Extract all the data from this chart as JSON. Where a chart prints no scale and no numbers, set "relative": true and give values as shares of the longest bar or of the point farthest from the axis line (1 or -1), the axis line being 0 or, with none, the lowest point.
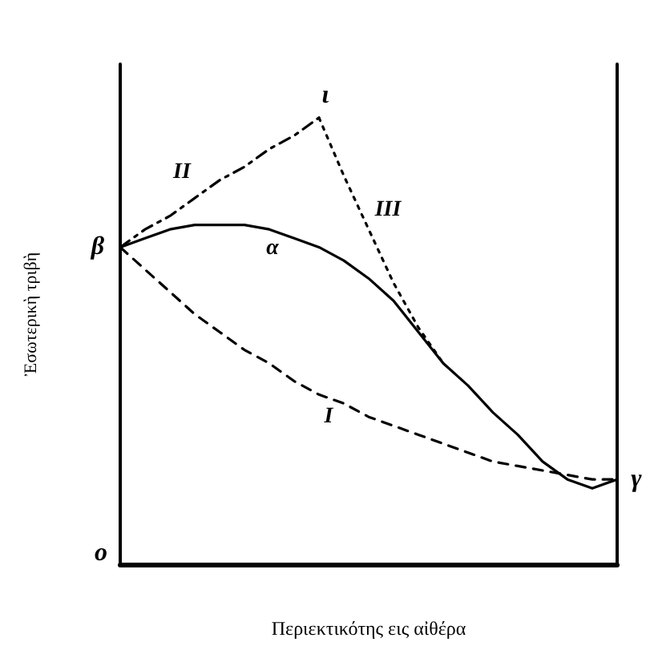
{
  "chart_data": {
    "type": "line",
    "relative": true,
    "xlabel": "Περιεκτικότης εις αἰθέρα",
    "ylabel": "Ἐσωτερικὴ τριβὴ",
    "categories": [
      null,
      null,
      null,
      null,
      null,
      null,
      null,
      null,
      null,
      null,
      null,
      null,
      null,
      null,
      null,
      null,
      null,
      null,
      null,
      null,
      null
    ],
    "series": [
      {
        "name": "α",
        "color": "#000000",
        "line_style": "solid",
        "values": [
          0.71,
          0.73,
          0.75,
          0.76,
          0.76,
          0.76,
          0.75,
          0.73,
          0.71,
          0.68,
          0.64,
          0.59,
          0.52,
          0.45,
          0.4,
          0.34,
          0.29,
          0.23,
          0.19,
          0.17,
          0.19
        ]
      },
      {
        "name": "I",
        "color": "#000000",
        "line_style": "dashed",
        "values": [
          0.71,
          0.66,
          0.61,
          0.56,
          0.52,
          0.48,
          0.45,
          0.41,
          0.38,
          0.36,
          0.33,
          0.31,
          0.29,
          0.27,
          0.25,
          0.23,
          0.22,
          0.21,
          0.2,
          0.19,
          0.19
        ]
      },
      {
        "name": "II",
        "color": "#000000",
        "line_style": "dashdot",
        "values": [
          0.71,
          0.75,
          0.78,
          0.82,
          0.86,
          0.89,
          0.93,
          0.96,
          1.0,
          null,
          null,
          null,
          null,
          null,
          null,
          null,
          null,
          null,
          null,
          null,
          null
        ]
      },
      {
        "name": "III",
        "color": "#000000",
        "line_style": "dotted",
        "values": [
          null,
          null,
          null,
          null,
          null,
          null,
          null,
          null,
          1.0,
          0.87,
          0.75,
          0.63,
          0.53,
          0.45,
          null,
          null,
          null,
          null,
          null,
          null,
          null
        ]
      }
    ],
    "annotations": [
      "β",
      "γ",
      "ι",
      "o"
    ],
    "grid": false,
    "legend": false,
    "marker": "none"
  }
}
